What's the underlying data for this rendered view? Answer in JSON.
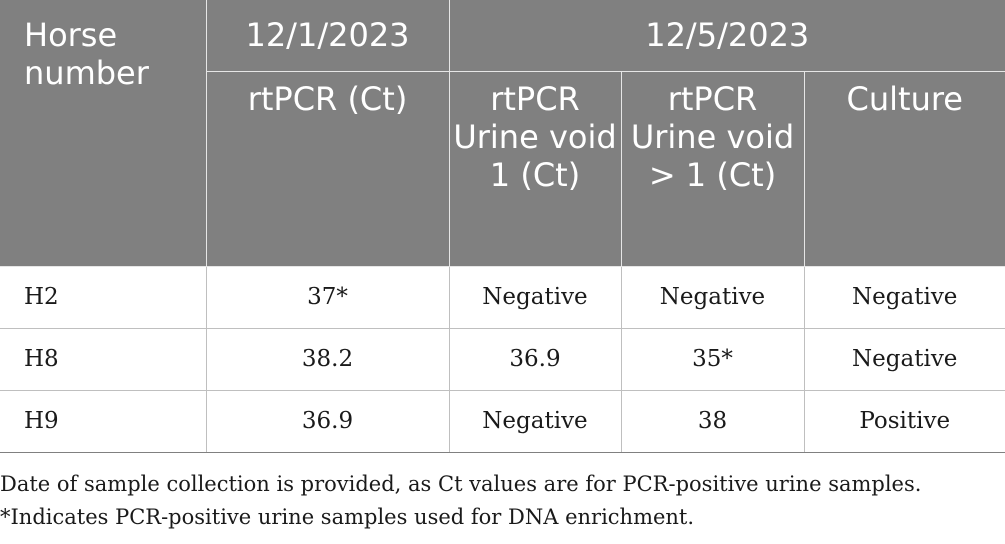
{
  "table": {
    "header": {
      "horse_number": "Horse number",
      "date_1": "12/1/2023",
      "date_2": "12/5/2023",
      "sub_columns": [
        "rtPCR (Ct)",
        "rtPCR Urine void 1 (Ct)",
        "rtPCR Urine void > 1 (Ct)",
        "Culture"
      ]
    },
    "rows": [
      {
        "horse": "H2",
        "rtpcr_ct": "37*",
        "void1": "Negative",
        "void_gt1": "Negative",
        "culture": "Negative"
      },
      {
        "horse": "H8",
        "rtpcr_ct": "38.2",
        "void1": "36.9",
        "void_gt1": "35*",
        "culture": "Negative"
      },
      {
        "horse": "H9",
        "rtpcr_ct": "36.9",
        "void1": "Negative",
        "void_gt1": "38",
        "culture": "Positive"
      }
    ]
  },
  "footnotes": [
    "Date of sample collection is provided, as Ct values are for PCR-positive urine samples.",
    "*Indicates PCR-positive urine samples used for DNA enrichment."
  ],
  "colors": {
    "header_background": "#808080",
    "header_text": "#ffffff",
    "body_text": "#1a1a1a"
  }
}
